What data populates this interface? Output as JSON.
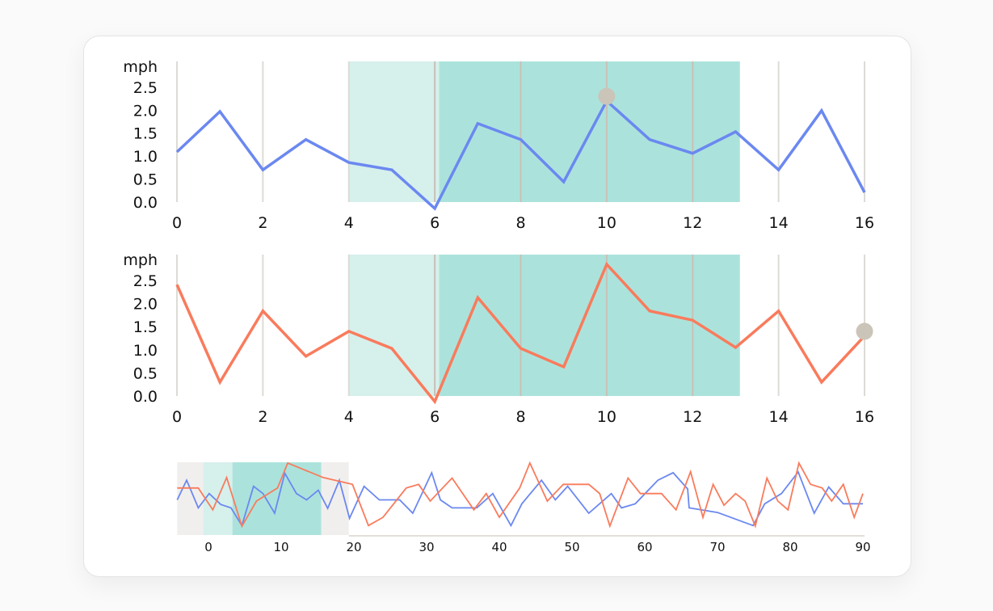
{
  "chart_data": [
    {
      "type": "line",
      "ylabel": "mph",
      "xlim": [
        0,
        16
      ],
      "ylim": [
        0,
        3.06
      ],
      "xticks": [
        "0",
        "2",
        "4",
        "6",
        "8",
        "10",
        "12",
        "14",
        "16"
      ],
      "yticks": [
        "0.0",
        "0.5",
        "1.0",
        "1.5",
        "2.0",
        "2.5"
      ],
      "grid": "vertical",
      "x": [
        0,
        1,
        2,
        3,
        4,
        5,
        6,
        7,
        8,
        9,
        10,
        11,
        12,
        13,
        14,
        15,
        16
      ],
      "series": [
        {
          "values": [
            1.09,
            1.97,
            0.7,
            1.36,
            0.86,
            0.7,
            -0.14,
            1.71,
            1.36,
            0.44,
            2.2,
            1.36,
            1.06,
            1.53,
            0.7,
            1.99,
            0.21
          ],
          "color": "#6b88f0"
        }
      ],
      "bands": [
        {
          "from": 4,
          "to": 6.1,
          "color": "#d6f0ec"
        },
        {
          "from": 6.1,
          "to": 13.1,
          "color": "#abe3dc"
        }
      ],
      "highlight": {
        "x": 10,
        "y": 2.3,
        "color": "#cbc4b8"
      }
    },
    {
      "type": "line",
      "ylabel": "mph",
      "xlim": [
        0,
        16
      ],
      "ylim": [
        0,
        3.06
      ],
      "xticks": [
        "0",
        "2",
        "4",
        "6",
        "8",
        "10",
        "12",
        "14",
        "16"
      ],
      "yticks": [
        "0.0",
        "0.5",
        "1.0",
        "1.5",
        "2.0",
        "2.5"
      ],
      "grid": "vertical",
      "x": [
        0,
        1,
        2,
        3,
        4,
        5,
        6,
        7,
        8,
        9,
        10,
        11,
        12,
        13,
        14,
        15,
        16
      ],
      "series": [
        {
          "values": [
            2.41,
            0.3,
            1.84,
            0.86,
            1.4,
            1.03,
            -0.12,
            2.13,
            1.03,
            0.63,
            2.85,
            1.84,
            1.64,
            1.05,
            1.84,
            0.3,
            1.3
          ],
          "color": "#f97b5c"
        }
      ],
      "bands": [
        {
          "from": 4,
          "to": 6.1,
          "color": "#d6f0ec"
        },
        {
          "from": 6.1,
          "to": 13.1,
          "color": "#abe3dc"
        }
      ],
      "highlight": {
        "x": 16,
        "y": 1.4,
        "color": "#cbc4b8"
      }
    },
    {
      "type": "line",
      "xlim": [
        -4.3,
        90
      ],
      "ylim": [
        0,
        3
      ],
      "xticks": [
        "0",
        "10",
        "20",
        "30",
        "40",
        "50",
        "60",
        "70",
        "80",
        "90"
      ],
      "brush": {
        "range": [
          -4.3,
          19.3
        ],
        "color": "#f1efed",
        "bands": [
          {
            "from": -0.7,
            "to": 3.3,
            "color": "#d6f0ec"
          },
          {
            "from": 3.3,
            "to": 15.5,
            "color": "#abe3dc"
          }
        ]
      },
      "series": [
        {
          "color": "#6b88f0",
          "x": [
            -4.3,
            -3.0,
            -1.4,
            0.1,
            1.7,
            3.1,
            4.6,
            6.2,
            7.5,
            9.1,
            10.5,
            12.1,
            13.5,
            15.1,
            16.4,
            18.0,
            19.4,
            21.4,
            23.5,
            26.3,
            28.1,
            30.7,
            31.9,
            33.5,
            36.9,
            39.1,
            41.6,
            43.1,
            45.8,
            47.7,
            49.4,
            52.3,
            55.4,
            56.8,
            58.7,
            61.8,
            63.9,
            65.9,
            66.1,
            70.0,
            74.9,
            76.5,
            78.8,
            81.1,
            83.3,
            85.3,
            87.3,
            90.0
          ],
          "values": [
            1.45,
            2.26,
            1.12,
            1.71,
            1.26,
            1.12,
            0.39,
            2.01,
            1.71,
            0.9,
            2.55,
            1.71,
            1.45,
            1.85,
            1.1,
            2.26,
            0.69,
            2.01,
            1.45,
            1.45,
            0.9,
            2.57,
            1.45,
            1.12,
            1.12,
            1.71,
            0.39,
            1.29,
            2.26,
            1.45,
            2.01,
            0.9,
            1.71,
            1.12,
            1.29,
            2.26,
            2.57,
            1.9,
            1.12,
            0.93,
            0.39,
            1.29,
            1.71,
            2.6,
            0.9,
            1.98,
            1.29,
            1.29
          ]
        },
        {
          "color": "#f97b5c",
          "x": [
            -4.3,
            -1.4,
            0.6,
            2.5,
            4.6,
            6.6,
            9.5,
            10.9,
            15.8,
            19.8,
            22.0,
            24.0,
            27.2,
            28.9,
            30.5,
            33.5,
            36.5,
            38.2,
            40.0,
            42.8,
            44.2,
            46.6,
            48.8,
            52.3,
            53.8,
            55.2,
            57.7,
            59.4,
            62.3,
            64.3,
            66.3,
            68.0,
            69.4,
            70.9,
            72.5,
            73.8,
            75.2,
            76.8,
            78.3,
            79.7,
            81.2,
            82.8,
            84.4,
            85.7,
            87.3,
            88.8,
            90.0
          ],
          "values": [
            1.94,
            1.94,
            1.04,
            2.37,
            0.36,
            1.4,
            1.94,
            2.97,
            2.37,
            2.09,
            0.39,
            0.73,
            1.94,
            2.09,
            1.4,
            2.35,
            1.04,
            1.71,
            0.73,
            1.94,
            2.97,
            1.4,
            2.09,
            2.09,
            1.71,
            0.37,
            2.35,
            1.71,
            1.71,
            1.04,
            2.61,
            0.73,
            2.09,
            1.23,
            1.71,
            1.4,
            0.37,
            2.35,
            1.4,
            1.04,
            2.97,
            2.09,
            1.94,
            1.4,
            2.09,
            0.73,
            1.71
          ]
        }
      ]
    }
  ]
}
